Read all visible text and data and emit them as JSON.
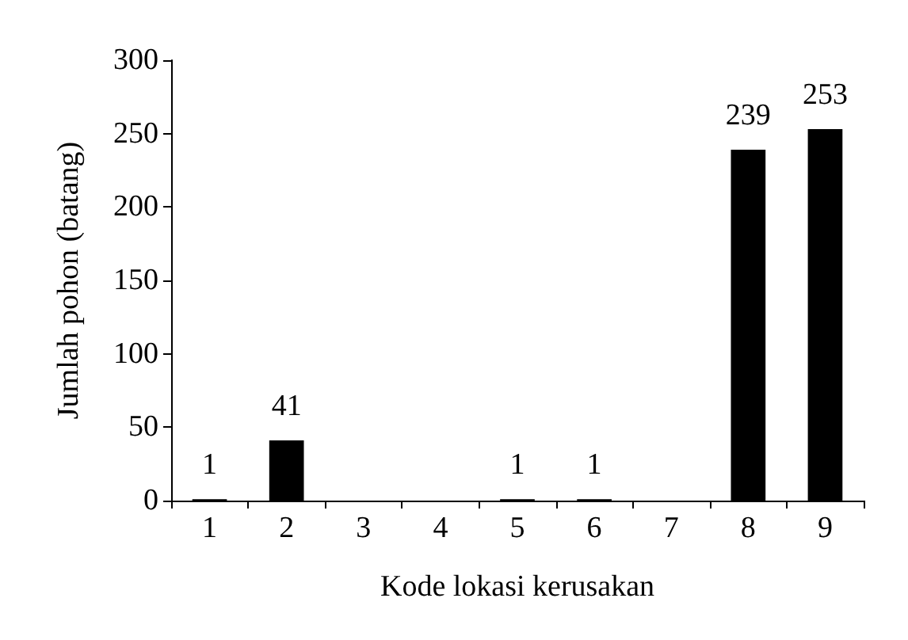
{
  "chart_data": {
    "type": "bar",
    "xlabel": "Kode lokasi kerusakan",
    "ylabel": "Jumlah pohon (batang)",
    "categories": [
      "1",
      "2",
      "3",
      "4",
      "5",
      "6",
      "7",
      "8",
      "9"
    ],
    "values": [
      1,
      41,
      0,
      0,
      1,
      1,
      0,
      239,
      253
    ],
    "value_labels": [
      "1",
      "41",
      null,
      null,
      "1",
      "1",
      null,
      "239",
      "253"
    ],
    "color": "#000000",
    "ylim": [
      0,
      300
    ],
    "yticks": [
      0,
      50,
      100,
      150,
      200,
      250,
      300
    ],
    "grid": false
  }
}
